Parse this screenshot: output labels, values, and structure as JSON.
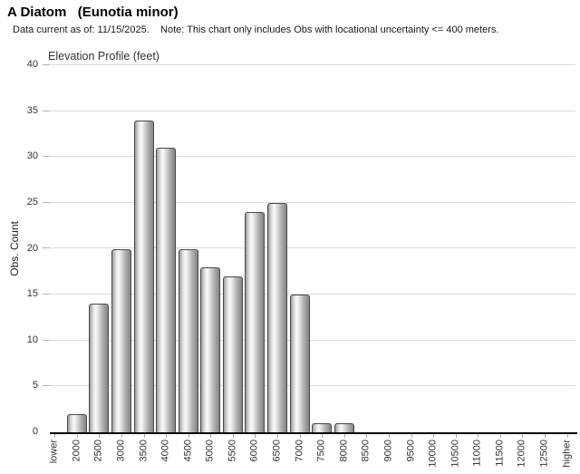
{
  "header": {
    "title": "A Diatom   (Eunotia minor)",
    "subtitle": "Data current as of: 11/15/2025.    Note: This chart only includes Obs with locational uncertainty <= 400 meters."
  },
  "chart_data": {
    "type": "bar",
    "title": "Elevation Profile (feet)",
    "xlabel": "",
    "ylabel": "Obs. Count",
    "categories": [
      "lower",
      "2000",
      "2500",
      "3000",
      "3500",
      "4000",
      "4500",
      "5000",
      "5500",
      "6000",
      "6500",
      "7000",
      "7500",
      "8000",
      "8500",
      "9000",
      "9500",
      "10000",
      "10500",
      "11000",
      "11500",
      "12000",
      "12500",
      "higher"
    ],
    "values": [
      0,
      2,
      14,
      20,
      34,
      31,
      20,
      18,
      17,
      24,
      25,
      15,
      1,
      1,
      0,
      0,
      0,
      0,
      0,
      0,
      0,
      0,
      0,
      0
    ],
    "ylim": [
      0,
      40
    ],
    "ytick_interval": 5,
    "grid": true,
    "legend": "none",
    "colors": {
      "bar_gradient_stops": [
        "#9b9b9b 0%",
        "#e3e3e3 20%",
        "#fafafa 34%",
        "#d8d8d8 52%",
        "#b3b3b3 70%",
        "#969696 88%",
        "#848484 100%"
      ],
      "bar_border": "#4a4a4a",
      "gridline": "#dcdcdc",
      "axis_line": "#000000",
      "tick": "#aaaaaa",
      "label_text": "#333333"
    }
  }
}
